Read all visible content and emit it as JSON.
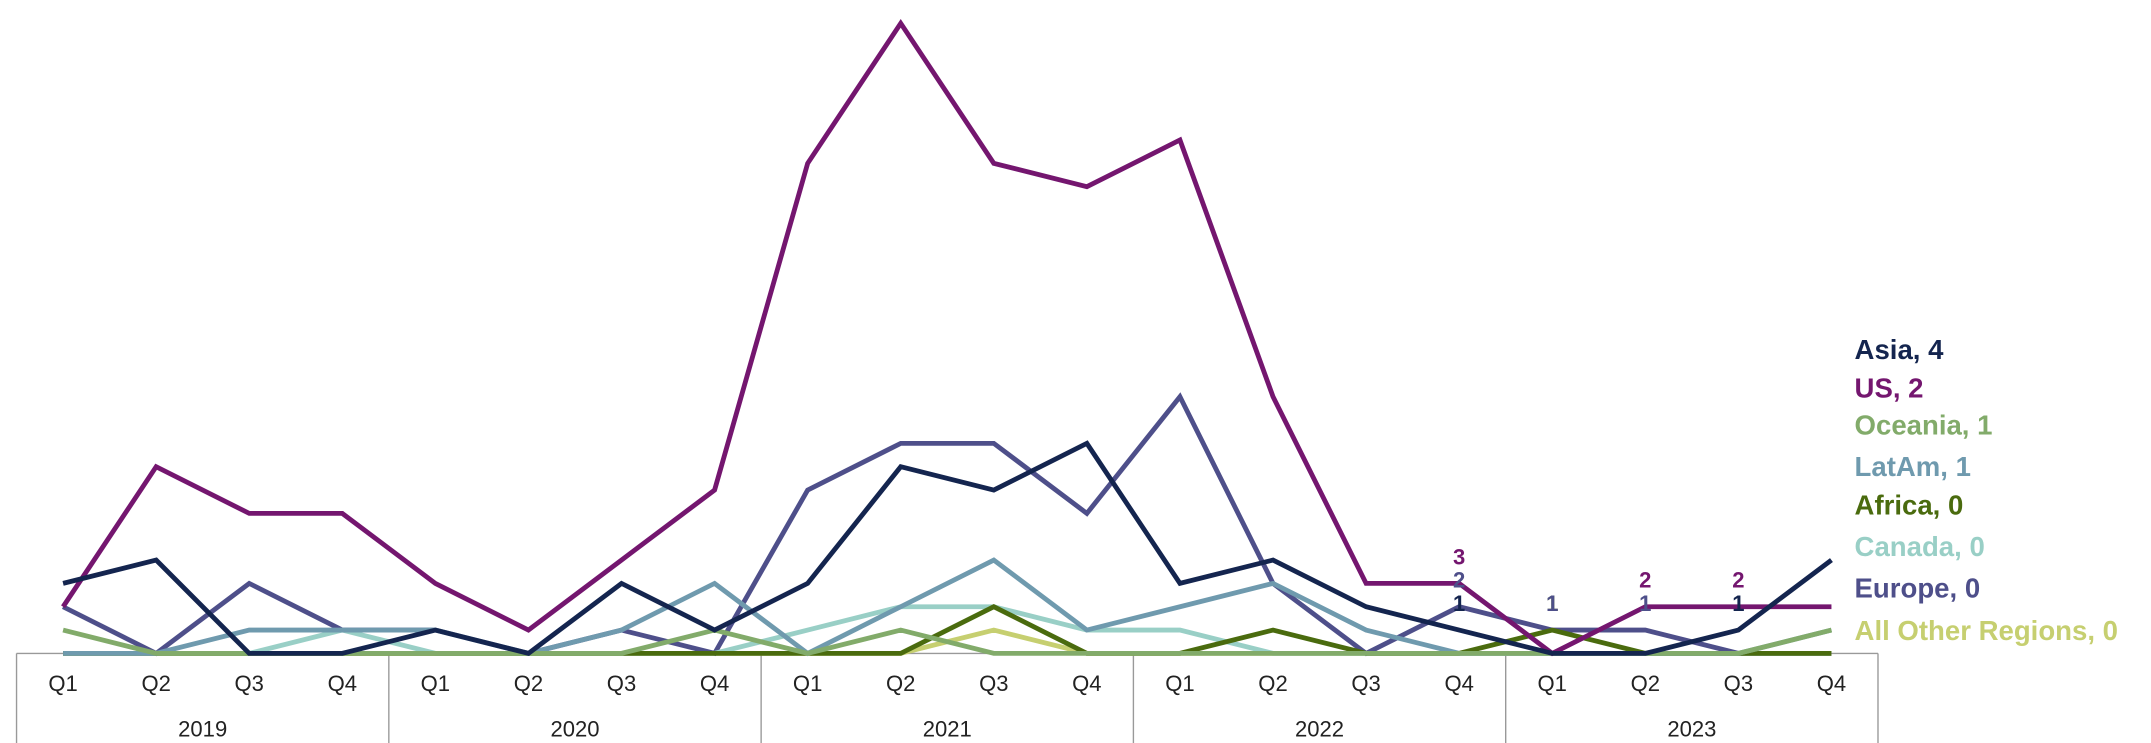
{
  "chart_data": {
    "type": "line",
    "categories": [
      "Q1",
      "Q2",
      "Q3",
      "Q4",
      "Q1",
      "Q2",
      "Q3",
      "Q4",
      "Q1",
      "Q2",
      "Q3",
      "Q4",
      "Q1",
      "Q2",
      "Q3",
      "Q4",
      "Q1",
      "Q2",
      "Q3",
      "Q4"
    ],
    "groups": [
      {
        "label": "2019",
        "span": 4
      },
      {
        "label": "2020",
        "span": 4
      },
      {
        "label": "2021",
        "span": 4
      },
      {
        "label": "2022",
        "span": 4
      },
      {
        "label": "2023",
        "span": 4
      }
    ],
    "ylim": [
      0,
      28
    ],
    "series": [
      {
        "name": "Asia, 4",
        "color": "#14254f",
        "values": [
          3,
          4,
          0,
          0,
          1,
          0,
          3,
          1,
          3,
          8,
          7,
          9,
          3,
          4,
          2,
          1,
          0,
          0,
          1,
          4
        ],
        "labels_at": [
          15,
          18
        ]
      },
      {
        "name": "US, 2",
        "color": "#74166f",
        "values": [
          2,
          8,
          6,
          6,
          3,
          1,
          4,
          7,
          21,
          27,
          21,
          20,
          22,
          11,
          3,
          3,
          0,
          2,
          2,
          2
        ],
        "labels_at": [
          15,
          17,
          18
        ]
      },
      {
        "name": "Oceania, 1",
        "color": "#82ab6a",
        "values": [
          1,
          0,
          0,
          0,
          0,
          0,
          0,
          1,
          0,
          1,
          0,
          0,
          0,
          0,
          0,
          0,
          0,
          0,
          0,
          1
        ],
        "labels_at": []
      },
      {
        "name": "LatAm, 1",
        "color": "#6f9aae",
        "values": [
          0,
          0,
          1,
          1,
          1,
          0,
          1,
          3,
          0,
          2,
          4,
          1,
          2,
          3,
          1,
          0,
          0,
          0,
          0,
          1
        ],
        "labels_at": []
      },
      {
        "name": "Africa, 0",
        "color": "#4a6b0e",
        "values": [
          0,
          0,
          0,
          0,
          0,
          0,
          0,
          0,
          0,
          0,
          2,
          0,
          0,
          1,
          0,
          0,
          1,
          0,
          0,
          0
        ],
        "labels_at": [
          16
        ]
      },
      {
        "name": "Canada, 0",
        "color": "#99cfc6",
        "values": [
          0,
          0,
          0,
          1,
          0,
          0,
          0,
          0,
          1,
          2,
          2,
          1,
          1,
          0,
          0,
          0,
          0,
          0,
          0,
          0
        ],
        "labels_at": []
      },
      {
        "name": "Europe, 0",
        "color": "#4e4f8a",
        "values": [
          2,
          0,
          3,
          1,
          1,
          0,
          1,
          0,
          7,
          9,
          9,
          6,
          11,
          3,
          0,
          2,
          1,
          1,
          0,
          0
        ],
        "labels_at": [
          15,
          16,
          17
        ]
      },
      {
        "name": "All Other Regions, 0",
        "color": "#c6cf70",
        "values": [
          0,
          0,
          0,
          0,
          0,
          0,
          0,
          0,
          0,
          0,
          1,
          0,
          0,
          0,
          0,
          0,
          0,
          0,
          0,
          0
        ],
        "labels_at": []
      }
    ]
  }
}
